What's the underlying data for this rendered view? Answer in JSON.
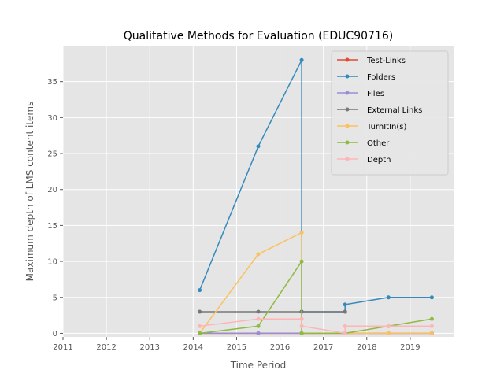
{
  "chart_data": {
    "type": "line",
    "title": "Qualitative Methods for Evaluation (EDUC90716)",
    "xlabel": "Time Period",
    "ylabel": "Maximum depth of LMS content items",
    "xlim": [
      2011,
      2020
    ],
    "ylim": [
      -0.5,
      40
    ],
    "x_ticks": [
      "2011",
      "2012",
      "2013",
      "2014",
      "2015",
      "2016",
      "2017",
      "2018",
      "2019"
    ],
    "y_ticks": [
      "0",
      "5",
      "10",
      "15",
      "20",
      "25",
      "30",
      "35"
    ],
    "grid": true,
    "legend_position": "top-right",
    "series": [
      {
        "name": "Test-Links",
        "color": "#E24A33",
        "points": [
          [
            2014.15,
            0
          ],
          [
            2015.5,
            0
          ],
          [
            2016.5,
            0
          ],
          [
            2016.5,
            0
          ],
          [
            2017.5,
            0
          ],
          [
            2018.5,
            0
          ],
          [
            2019.5,
            0
          ]
        ]
      },
      {
        "name": "Folders",
        "color": "#348ABD",
        "points": [
          [
            2014.15,
            6
          ],
          [
            2015.5,
            26
          ],
          [
            2016.5,
            38
          ],
          [
            2016.5,
            3
          ],
          [
            2017.5,
            3
          ],
          [
            2017.5,
            4
          ],
          [
            2018.5,
            5
          ],
          [
            2019.5,
            5
          ]
        ]
      },
      {
        "name": "Files",
        "color": "#988ED5",
        "points": [
          [
            2014.15,
            0
          ],
          [
            2015.5,
            0
          ],
          [
            2016.5,
            0
          ],
          [
            2016.5,
            0
          ],
          [
            2017.5,
            0
          ],
          [
            2018.5,
            0
          ],
          [
            2019.5,
            0
          ]
        ]
      },
      {
        "name": "External Links",
        "color": "#777777",
        "points": [
          [
            2014.15,
            3
          ],
          [
            2015.5,
            3
          ],
          [
            2016.5,
            3
          ],
          [
            2016.5,
            3
          ],
          [
            2017.5,
            3
          ]
        ]
      },
      {
        "name": "TurnItIn(s)",
        "color": "#FBC15E",
        "points": [
          [
            2014.15,
            0
          ],
          [
            2015.5,
            11
          ],
          [
            2016.5,
            14
          ],
          [
            2016.5,
            0
          ],
          [
            2017.5,
            0
          ],
          [
            2018.5,
            0
          ],
          [
            2019.5,
            0
          ]
        ]
      },
      {
        "name": "Other",
        "color": "#8EBA42",
        "points": [
          [
            2014.15,
            0
          ],
          [
            2015.5,
            1
          ],
          [
            2016.5,
            10
          ],
          [
            2016.5,
            0
          ],
          [
            2017.5,
            0
          ],
          [
            2018.5,
            1
          ],
          [
            2019.5,
            2
          ]
        ]
      },
      {
        "name": "Depth",
        "color": "#FFB5B8",
        "points": [
          [
            2014.15,
            1
          ],
          [
            2015.5,
            2
          ],
          [
            2016.5,
            2
          ],
          [
            2016.5,
            1
          ],
          [
            2017.5,
            0
          ],
          [
            2017.5,
            1
          ],
          [
            2018.5,
            1
          ],
          [
            2019.5,
            1
          ]
        ]
      }
    ]
  }
}
